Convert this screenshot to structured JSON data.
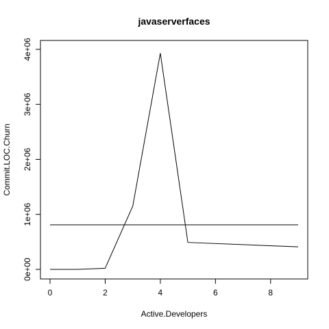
{
  "chart_data": {
    "type": "line",
    "title": "javaserverfaces",
    "xlabel": "Active.Developers",
    "ylabel": "Commit.LOC.Churn",
    "xlim": [
      0,
      9
    ],
    "ylim": [
      0,
      4000000
    ],
    "x_ticks": [
      0,
      2,
      4,
      6,
      8
    ],
    "x_tick_labels": [
      "0",
      "2",
      "4",
      "6",
      "8"
    ],
    "y_ticks": [
      0,
      1000000,
      2000000,
      3000000,
      4000000
    ],
    "y_tick_labels": [
      "0e+00",
      "1e+06",
      "2e+06",
      "3e+06",
      "4e+06"
    ],
    "grid": false,
    "series": [
      {
        "x": [
          0,
          1,
          2,
          3,
          4,
          5,
          9
        ],
        "values": [
          0,
          0,
          20000,
          1150000,
          3930000,
          490000,
          410000
        ],
        "color": "#000000"
      },
      {
        "x": [
          0,
          9
        ],
        "values": [
          810000,
          810000
        ],
        "color": "#000000"
      }
    ]
  }
}
